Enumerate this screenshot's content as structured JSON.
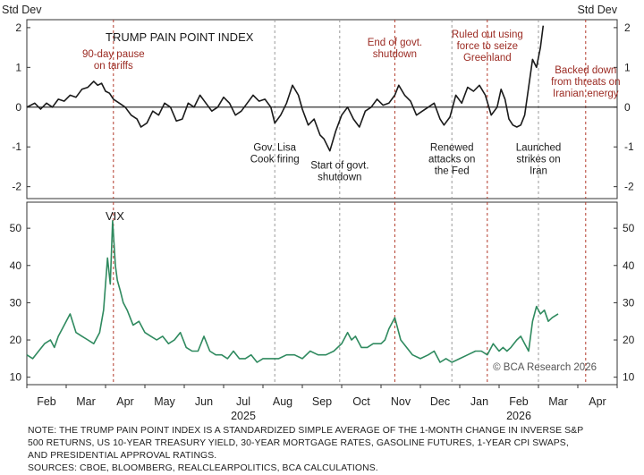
{
  "header": {
    "left_unit": "Std Dev",
    "right_unit": "Std Dev"
  },
  "colors": {
    "pain_line": "#1a1a1a",
    "vix_line": "#2f8a5f",
    "event_red": "#b23a2a",
    "event_gray": "#999999",
    "annotation_red": "#9b2a22"
  },
  "chart_data": [
    {
      "type": "line",
      "title": "TRUMP PAIN POINT INDEX",
      "ylabel": "Std Dev",
      "ylim": [
        -2.3,
        2.2
      ],
      "yticks": [
        -2,
        -1,
        0,
        1,
        2
      ],
      "x_unit": "months since 1 Feb 2025",
      "x": [
        0,
        0.1,
        0.2,
        0.35,
        0.5,
        0.65,
        0.8,
        0.95,
        1.1,
        1.25,
        1.4,
        1.55,
        1.7,
        1.8,
        1.9,
        2.0,
        2.1,
        2.2,
        2.35,
        2.5,
        2.65,
        2.8,
        2.9,
        3.05,
        3.2,
        3.35,
        3.5,
        3.65,
        3.8,
        3.95,
        4.1,
        4.25,
        4.4,
        4.55,
        4.7,
        4.85,
        5.0,
        5.15,
        5.3,
        5.45,
        5.6,
        5.75,
        5.9,
        6.05,
        6.2,
        6.3,
        6.45,
        6.6,
        6.75,
        6.9,
        7.0,
        7.15,
        7.3,
        7.45,
        7.55,
        7.7,
        7.85,
        8.0,
        8.15,
        8.3,
        8.45,
        8.6,
        8.75,
        8.9,
        9.05,
        9.2,
        9.35,
        9.45,
        9.6,
        9.75,
        9.9,
        10.05,
        10.2,
        10.35,
        10.5,
        10.6,
        10.75,
        10.9,
        11.05,
        11.2,
        11.35,
        11.5,
        11.65,
        11.8,
        11.95,
        12.05,
        12.15,
        12.25,
        12.35,
        12.45,
        12.55,
        12.65,
        12.75,
        12.85,
        12.95,
        13.05,
        13.12
      ],
      "values": [
        0.0,
        0.05,
        0.1,
        -0.05,
        0.1,
        0.0,
        0.2,
        0.15,
        0.3,
        0.25,
        0.45,
        0.5,
        0.65,
        0.55,
        0.6,
        0.4,
        0.35,
        0.2,
        0.1,
        0.0,
        -0.2,
        -0.3,
        -0.5,
        -0.4,
        -0.1,
        -0.2,
        0.1,
        0.0,
        -0.35,
        -0.3,
        0.1,
        0.0,
        0.3,
        0.1,
        -0.1,
        0.0,
        0.25,
        0.1,
        -0.2,
        -0.1,
        0.1,
        0.3,
        0.15,
        0.2,
        0.0,
        -0.4,
        -0.2,
        0.1,
        0.55,
        0.3,
        -0.05,
        -0.45,
        -0.3,
        -0.7,
        -0.8,
        -1.1,
        -0.6,
        -0.2,
        0.0,
        -0.3,
        -0.5,
        -0.1,
        0.0,
        0.2,
        0.05,
        0.1,
        0.3,
        0.55,
        0.3,
        0.15,
        -0.2,
        -0.1,
        0.0,
        0.1,
        -0.3,
        -0.45,
        -0.25,
        0.3,
        0.1,
        0.5,
        0.4,
        0.55,
        0.3,
        -0.2,
        0.0,
        0.45,
        0.2,
        -0.3,
        -0.45,
        -0.5,
        -0.45,
        -0.2,
        0.5,
        1.2,
        1.0,
        1.5,
        2.05
      ],
      "annotations": [
        {
          "text": [
            "90-day pause",
            "on tariffs"
          ],
          "month": 2.2,
          "level": 1.25,
          "color": "red",
          "line_color": "red"
        },
        {
          "text": [
            "Gov. Lisa",
            "Cook firing"
          ],
          "month": 6.3,
          "level": -1.1,
          "color": "black",
          "line_color": "gray"
        },
        {
          "text": [
            "Start of govt.",
            "shutdown"
          ],
          "month": 7.95,
          "level": -1.55,
          "color": "black",
          "line_color": "gray"
        },
        {
          "text": [
            "End of govt.",
            "shutdown"
          ],
          "month": 9.35,
          "level": 1.55,
          "color": "red",
          "line_color": "red"
        },
        {
          "text": [
            "Renewed",
            "attacks on",
            "the Fed"
          ],
          "month": 10.8,
          "level": -1.1,
          "color": "black",
          "line_color": "gray"
        },
        {
          "text": [
            "Ruled out using",
            "force to seize",
            "Greenland"
          ],
          "month": 11.7,
          "level": 1.75,
          "color": "red",
          "line_color": "red"
        },
        {
          "text": [
            "Launched",
            "strikes on",
            "Iran"
          ],
          "month": 13.0,
          "level": -1.1,
          "color": "black",
          "line_color": "gray"
        },
        {
          "text": [
            "Backed down",
            "from threats on",
            "Iranian energy"
          ],
          "month": 14.2,
          "level": 0.85,
          "color": "red",
          "line_color": "red"
        }
      ]
    },
    {
      "type": "line",
      "title": "VIX",
      "ylim": [
        8,
        57
      ],
      "yticks": [
        10,
        20,
        30,
        40,
        50
      ],
      "x_unit": "months since 1 Feb 2025",
      "x": [
        0,
        0.15,
        0.3,
        0.45,
        0.6,
        0.7,
        0.8,
        0.9,
        1.0,
        1.1,
        1.25,
        1.4,
        1.55,
        1.7,
        1.85,
        1.95,
        2.05,
        2.12,
        2.18,
        2.25,
        2.3,
        2.38,
        2.45,
        2.55,
        2.7,
        2.85,
        3.0,
        3.15,
        3.3,
        3.45,
        3.6,
        3.75,
        3.9,
        4.05,
        4.2,
        4.35,
        4.5,
        4.65,
        4.8,
        4.95,
        5.1,
        5.25,
        5.4,
        5.55,
        5.7,
        5.85,
        6.0,
        6.2,
        6.4,
        6.6,
        6.8,
        7.0,
        7.2,
        7.4,
        7.6,
        7.8,
        8.0,
        8.15,
        8.25,
        8.35,
        8.5,
        8.65,
        8.8,
        9.0,
        9.1,
        9.2,
        9.35,
        9.5,
        9.65,
        9.8,
        10.0,
        10.2,
        10.35,
        10.5,
        10.65,
        10.8,
        11.0,
        11.2,
        11.4,
        11.55,
        11.7,
        11.85,
        12.0,
        12.1,
        12.2,
        12.3,
        12.45,
        12.55,
        12.65,
        12.75,
        12.85,
        12.95,
        13.05,
        13.15,
        13.25,
        13.35,
        13.5
      ],
      "values": [
        16,
        15,
        17,
        19,
        20,
        18,
        21,
        23,
        25,
        27,
        22,
        21,
        20,
        19,
        22,
        28,
        42,
        35,
        52,
        40,
        36,
        33,
        30,
        28,
        24,
        25,
        22,
        21,
        20,
        21,
        19,
        20,
        22,
        18,
        17,
        17,
        21,
        17,
        16,
        16,
        15,
        17,
        15,
        15,
        16,
        14,
        15,
        15,
        15,
        16,
        16,
        15,
        17,
        16,
        16,
        17,
        19,
        22,
        20,
        21,
        18,
        18,
        19,
        19,
        20,
        23,
        26,
        20,
        18,
        16,
        15,
        16,
        17,
        14,
        15,
        14,
        15,
        16,
        17,
        17,
        16,
        19,
        17,
        18,
        17,
        18,
        20,
        21,
        19,
        17,
        25,
        29,
        27,
        28,
        25,
        26,
        27
      ],
      "watermark": "© BCA Research 2026"
    }
  ],
  "x_axis": {
    "tick_labels": [
      "Feb",
      "Mar",
      "Apr",
      "May",
      "Jun",
      "Jul",
      "Aug",
      "Sep",
      "Oct",
      "Nov",
      "Dec",
      "Jan",
      "Feb",
      "Mar",
      "Apr"
    ],
    "years": [
      {
        "label": "2025",
        "month": 5.5
      },
      {
        "label": "2026",
        "month": 12.5
      }
    ]
  },
  "note": {
    "lines": [
      "NOTE: THE TRUMP PAIN POINT INDEX IS A STANDARDIZED SIMPLE AVERAGE OF THE 1-MONTH CHANGE IN INVERSE S&P",
      "500 RETURNS, US 10-YEAR TREASURY YIELD, 30-YEAR MORTGAGE RATES, GASOLINE FUTURES, 1-YEAR CPI SWAPS,",
      "AND PRESIDENTIAL APPROVAL RATINGS."
    ],
    "sources": "SOURCES: CBOE, BLOOMBERG, REALCLEARPOLITICS, BCA CALCULATIONS."
  }
}
